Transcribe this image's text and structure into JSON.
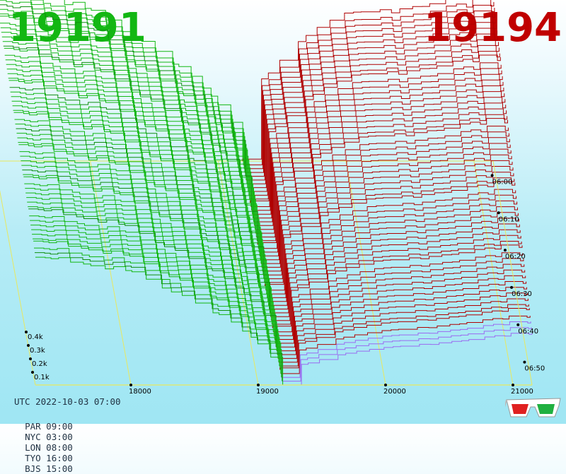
{
  "header": {
    "bid_price": "19191",
    "ask_price": "19194",
    "bid_color": "#13b713",
    "ask_color": "#c00000"
  },
  "footer": {
    "utc": "UTC 2022-10-03 07:00",
    "zones": [
      "PAR 09:00",
      "NYC 03:00",
      "LON 08:00",
      "TYO 16:00",
      "BJS 15:00"
    ]
  },
  "icons": {
    "glasses": "3d-glasses-icon"
  },
  "chart_data": {
    "type": "area",
    "subtype": "3d-order-book-depth-waterfall",
    "x_ticks": [
      "18000",
      "19000",
      "20000",
      "21000"
    ],
    "x_tick_values": [
      18000,
      19000,
      20000,
      21000
    ],
    "xlim": [
      17250,
      21150
    ],
    "mid_price": 19192.5,
    "z_ticks": [
      "0.1k",
      "0.2k",
      "0.3k",
      "0.4k"
    ],
    "z_tick_values": [
      100,
      200,
      300,
      400
    ],
    "time_ticks": [
      "06:00",
      "06:10",
      "06:20",
      "06:30",
      "06:40",
      "06:50"
    ],
    "time_tick_minutes": [
      0,
      10,
      20,
      30,
      40,
      50
    ],
    "time_range_minutes": [
      -5,
      55
    ],
    "slices": 60,
    "series": [
      {
        "name": "bids",
        "color": "#13b713",
        "depth_at_18000_start": 380,
        "depth_at_18000_end": 290,
        "depth_at_17300_start": 450,
        "depth_at_17300_end": 330
      },
      {
        "name": "asks",
        "color": "#b00000",
        "depth_at_20000_start": 370,
        "depth_at_20000_end": 95,
        "depth_at_21000_start": 420,
        "depth_at_21000_end": 130
      }
    ],
    "grid": true
  }
}
